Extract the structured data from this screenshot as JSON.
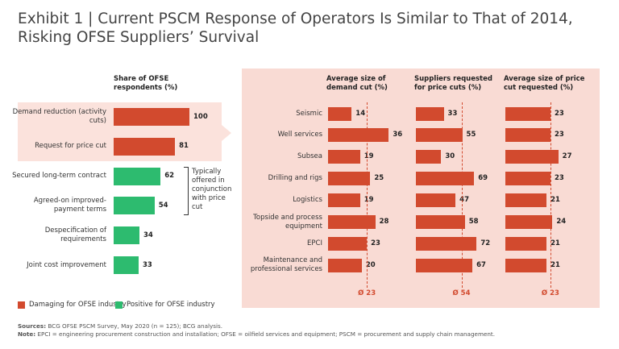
{
  "title": "Exhibit 1 | Current PSCM Response of Operators Is Similar to That of 2014, Risking OFSE Suppliers’ Survival",
  "chart_data": [
    {
      "type": "bar",
      "orientation": "horizontal",
      "title": "Share of OFSE respondents (%)",
      "categories": [
        "Demand reduction (activity cuts)",
        "Request for price cut",
        "Secured long-term contract",
        "Agreed-on improved-payment terms",
        "Despecification of requirements",
        "Joint cost improvement"
      ],
      "values": [
        100,
        81,
        62,
        54,
        34,
        33
      ],
      "colors": [
        "#d24a2e",
        "#d24a2e",
        "#2dbb6f",
        "#2dbb6f",
        "#2dbb6f",
        "#2dbb6f"
      ],
      "xlim": [
        0,
        100
      ],
      "annotation": "Typically offered in conjunction with price cut",
      "legend": [
        {
          "name": "Damaging for OFSE industry",
          "color": "#d24a2e"
        },
        {
          "name": "Positive for OFSE industry",
          "color": "#2dbb6f"
        }
      ]
    },
    {
      "type": "bar",
      "orientation": "horizontal",
      "categories": [
        "Seismic",
        "Well services",
        "Subsea",
        "Drilling and rigs",
        "Logistics",
        "Topside and process equipment",
        "EPCI",
        "Maintenance and professional services"
      ],
      "series": [
        {
          "name": "Average size of demand cut (%)",
          "color": "#d24a2e",
          "values": [
            14,
            36,
            19,
            25,
            19,
            28,
            23,
            20
          ],
          "xlim": [
            0,
            43
          ],
          "average": 23,
          "average_label": "Ø 23"
        },
        {
          "name": "Suppliers requested for price cuts (%)",
          "color": "#d24a2e",
          "values": [
            33,
            55,
            30,
            69,
            47,
            58,
            72,
            67
          ],
          "xlim": [
            0,
            86
          ],
          "average": 54,
          "average_label": "Ø 54"
        },
        {
          "name": "Average size of price cut requested (%)",
          "color": "#d24a2e",
          "values": [
            23,
            23,
            27,
            23,
            21,
            24,
            21,
            21
          ],
          "xlim": [
            0,
            37
          ],
          "average": 23,
          "average_label": "Ø 23"
        }
      ]
    }
  ],
  "sources_label": "Sources:",
  "sources": "BCG OFSE PSCM Survey, May 2020 (n = 125); BCG analysis.",
  "note_label": "Note:",
  "note": "EPCI = engineering procurement construction and installation; OFSE = oilfield services and equipment; PSCM = procurement and supply chain management."
}
